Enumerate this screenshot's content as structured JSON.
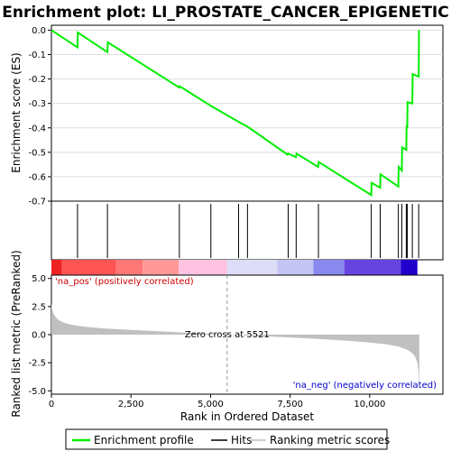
{
  "chart_data": {
    "type": "line",
    "title": "Enrichment plot: LI_PROSTATE_CANCER_EPIGENETIC",
    "top_panel": {
      "ylabel": "Enrichment score (ES)",
      "ylim": [
        -0.7,
        0.02
      ],
      "yticks": [
        0.0,
        -0.1,
        -0.2,
        -0.3,
        -0.4,
        -0.5,
        -0.6,
        -0.7
      ],
      "ytick_labels": [
        "0.0",
        "-0.1",
        "-0.2",
        "-0.3",
        "-0.4",
        "-0.5",
        "-0.6",
        "-0.7"
      ],
      "grid": true,
      "line_color": "#00ee00",
      "series": [
        {
          "name": "Enrichment profile",
          "x": [
            0,
            820,
            830,
            1760,
            1770,
            4020,
            4030,
            4100,
            5010,
            5880,
            6160,
            7420,
            7440,
            7520,
            7680,
            7700,
            8380,
            8400,
            10050,
            10060,
            10330,
            10340,
            10900,
            10910,
            11010,
            11020,
            11150,
            11160,
            11180,
            11190,
            11340,
            11350,
            11540,
            11550
          ],
          "y": [
            0.0,
            -0.07,
            -0.01,
            -0.09,
            -0.05,
            -0.235,
            -0.23,
            -0.235,
            -0.31,
            -0.375,
            -0.395,
            -0.51,
            -0.505,
            -0.51,
            -0.52,
            -0.505,
            -0.56,
            -0.54,
            -0.675,
            -0.625,
            -0.645,
            -0.59,
            -0.64,
            -0.56,
            -0.575,
            -0.48,
            -0.49,
            -0.39,
            -0.4,
            -0.295,
            -0.3,
            -0.18,
            -0.19,
            0.0
          ]
        }
      ]
    },
    "hits": {
      "positions": [
        820,
        1760,
        4020,
        5010,
        5880,
        6160,
        7440,
        7690,
        8390,
        10050,
        10330,
        10900,
        11010,
        11150,
        11180,
        11340,
        11540
      ]
    },
    "color_bar": {
      "segments": [
        {
          "start": 0,
          "end": 330,
          "color": "#ee2222"
        },
        {
          "start": 330,
          "end": 2030,
          "color": "#ff5555"
        },
        {
          "start": 2030,
          "end": 2870,
          "color": "#ff7777"
        },
        {
          "start": 2870,
          "end": 4000,
          "color": "#ff9999"
        },
        {
          "start": 4000,
          "end": 5521,
          "color": "#ffc2e0"
        },
        {
          "start": 5521,
          "end": 7100,
          "color": "#ddddf8"
        },
        {
          "start": 7100,
          "end": 8230,
          "color": "#c5c5f5"
        },
        {
          "start": 8230,
          "end": 9210,
          "color": "#8888ee"
        },
        {
          "start": 9210,
          "end": 10980,
          "color": "#6644e0"
        },
        {
          "start": 10980,
          "end": 11500,
          "color": "#2200cc"
        }
      ]
    },
    "bottom_panel": {
      "ylabel": "Ranked list metric (PreRanked)",
      "xlabel": "Rank in Ordered Dataset",
      "ylim": [
        -5.3,
        5.3
      ],
      "yticks": [
        5.0,
        2.5,
        0.0,
        -2.5,
        -5.0
      ],
      "ytick_labels": [
        "5.0",
        "2.5",
        "0.0",
        "-2.5",
        "-5.0"
      ],
      "xlim": [
        0,
        12300
      ],
      "xticks": [
        0,
        2500,
        5000,
        7500,
        10000
      ],
      "xtick_labels": [
        "0",
        "2,500",
        "5,000",
        "7,500",
        "10,000"
      ],
      "fill_color": "#c0c0c0",
      "metric": {
        "x": [
          0,
          30,
          80,
          150,
          250,
          400,
          600,
          850,
          1200,
          1700,
          2500,
          3500,
          4500,
          5521,
          6500,
          7500,
          8500,
          9300,
          10000,
          10500,
          10900,
          11150,
          11300,
          11420,
          11500,
          11540,
          11560
        ],
        "y": [
          2.8,
          2.2,
          1.8,
          1.5,
          1.25,
          1.05,
          0.9,
          0.78,
          0.66,
          0.55,
          0.42,
          0.28,
          0.14,
          0.0,
          -0.12,
          -0.25,
          -0.4,
          -0.55,
          -0.7,
          -0.85,
          -1.05,
          -1.3,
          -1.55,
          -1.9,
          -2.5,
          -3.5,
          -5.1
        ]
      },
      "pos_label": "'na_pos' (positively correlated)",
      "neg_label": "'na_neg' (negatively correlated)",
      "zero_cross_label": "Zero cross at 5521",
      "zero_cross": 5521
    },
    "legend": {
      "placement": "bottom",
      "entries": [
        {
          "label": "Enrichment profile",
          "color": "#00ee00"
        },
        {
          "label": "Hits",
          "color": "#000000"
        },
        {
          "label": "Ranking metric scores",
          "color": "#c0c0c0"
        }
      ]
    }
  }
}
